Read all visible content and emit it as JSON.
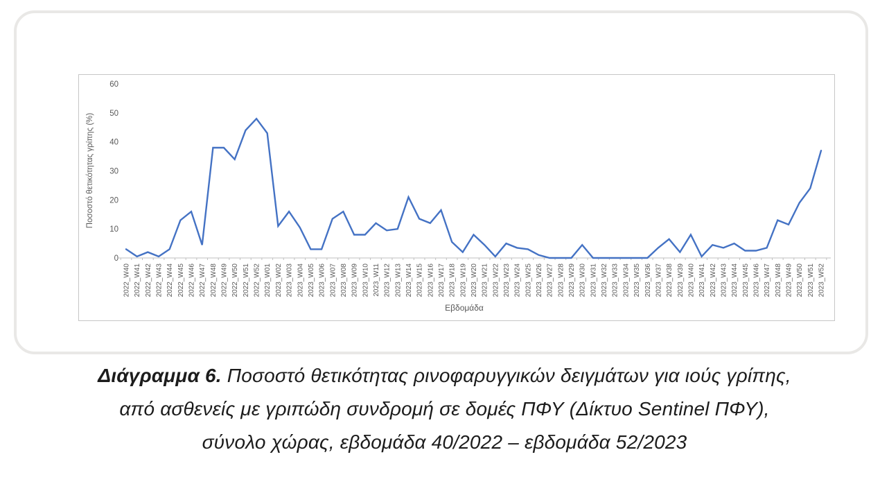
{
  "figure": {
    "caption": {
      "line1_bold": "Διάγραμμα 6.",
      "line1_rest": " Ποσοστό θετικότητας ρινοφαρυγγικών δειγμάτων για ιούς γρίπης,",
      "line2": "από ασθενείς με γριπώδη συνδρομή σε δομές ΠΦΥ (Δίκτυο Sentinel ΠΦΥ),",
      "line3": "σύνολο χώρας, εβδομάδα 40/2022 – εβδομάδα 52/2023"
    }
  },
  "chart_data": {
    "type": "line",
    "title": "",
    "xlabel": "Εβδομάδα",
    "ylabel": "Ποσοστό θετικότητας γρίπης (%)",
    "ylim": [
      0,
      60
    ],
    "yticks": [
      0,
      10,
      20,
      30,
      40,
      50,
      60
    ],
    "grid": false,
    "legend": false,
    "line_color": "#4472C4",
    "axis_color": "#bfbfbf",
    "tick_label_color": "#595959",
    "categories": [
      "2022_W40",
      "2022_W41",
      "2022_W42",
      "2022_W43",
      "2022_W44",
      "2022_W45",
      "2022_W46",
      "2022_W47",
      "2022_W48",
      "2022_W49",
      "2022_W50",
      "2022_W51",
      "2022_W52",
      "2023_W01",
      "2023_W02",
      "2023_W03",
      "2023_W04",
      "2023_W05",
      "2023_W06",
      "2023_W07",
      "2023_W08",
      "2023_W09",
      "2023_W10",
      "2023_W11",
      "2023_W12",
      "2023_W13",
      "2023_W14",
      "2023_W15",
      "2023_W16",
      "2023_W17",
      "2023_W18",
      "2023_W19",
      "2023_W20",
      "2023_W21",
      "2023_W22",
      "2023_W23",
      "2023_W24",
      "2023_W25",
      "2023_W26",
      "2023_W27",
      "2023_W28",
      "2023_W29",
      "2023_W30",
      "2023_W31",
      "2023_W32",
      "2023_W33",
      "2023_W34",
      "2023_W35",
      "2023_W36",
      "2023_W37",
      "2023_W38",
      "2023_W39",
      "2023_W40",
      "2023_W41",
      "2023_W42",
      "2023_W43",
      "2023_W44",
      "2023_W45",
      "2023_W46",
      "2023_W47",
      "2023_W48",
      "2023_W49",
      "2023_W50",
      "2023_W51",
      "2023_W52"
    ],
    "values": [
      3,
      0.5,
      2,
      0.5,
      3,
      13,
      16,
      4.5,
      38,
      38,
      34,
      44,
      48,
      43,
      11,
      16,
      10.5,
      3,
      3,
      13.5,
      16,
      8,
      8,
      12,
      9.5,
      10,
      21,
      13.5,
      12,
      16.5,
      5.5,
      2,
      8,
      4.5,
      0.5,
      5,
      3.5,
      3,
      1,
      0,
      0,
      0,
      4.5,
      0,
      0,
      0,
      0,
      0,
      0,
      3.5,
      6.5,
      2,
      8,
      0.5,
      4.5,
      3.5,
      5,
      2.5,
      2.5,
      3.5,
      13,
      11.5,
      19,
      24,
      37
    ]
  }
}
